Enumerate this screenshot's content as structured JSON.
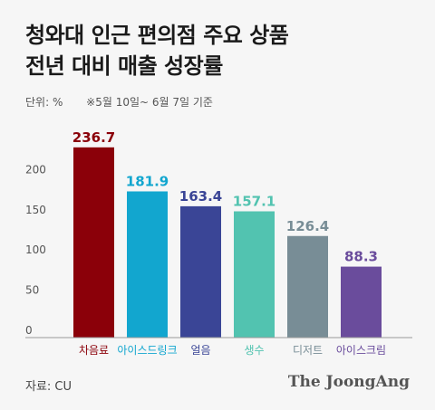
{
  "header": {
    "title_line1": "청와대 인근 편의점 주요 상품",
    "title_line2": "전년 대비 매출 성장률",
    "unit": "단위: %",
    "note": "※5월 10일~ 6월 7일 기준"
  },
  "footer": {
    "source": "자료: CU",
    "brand": "The JoongAng"
  },
  "chart_data": {
    "type": "bar",
    "title": "청와대 인근 편의점 주요 상품 전년 대비 매출 성장률",
    "ylabel": "단위: %",
    "ylim": [
      0,
      250
    ],
    "yticks": [
      0,
      50,
      100,
      150,
      200
    ],
    "grid": false,
    "categories": [
      "차음료",
      "아이스드링크",
      "얼음",
      "생수",
      "디저트",
      "아이스크림"
    ],
    "values": [
      236.7,
      181.9,
      163.4,
      157.1,
      126.4,
      88.3
    ],
    "value_labels": [
      "236.7",
      "181.9",
      "163.4",
      "157.1",
      "126.4",
      "88.3"
    ],
    "colors": [
      "#8b0009",
      "#12a6cf",
      "#3a4596",
      "#52c3b0",
      "#788d96",
      "#6a4c9c"
    ]
  }
}
